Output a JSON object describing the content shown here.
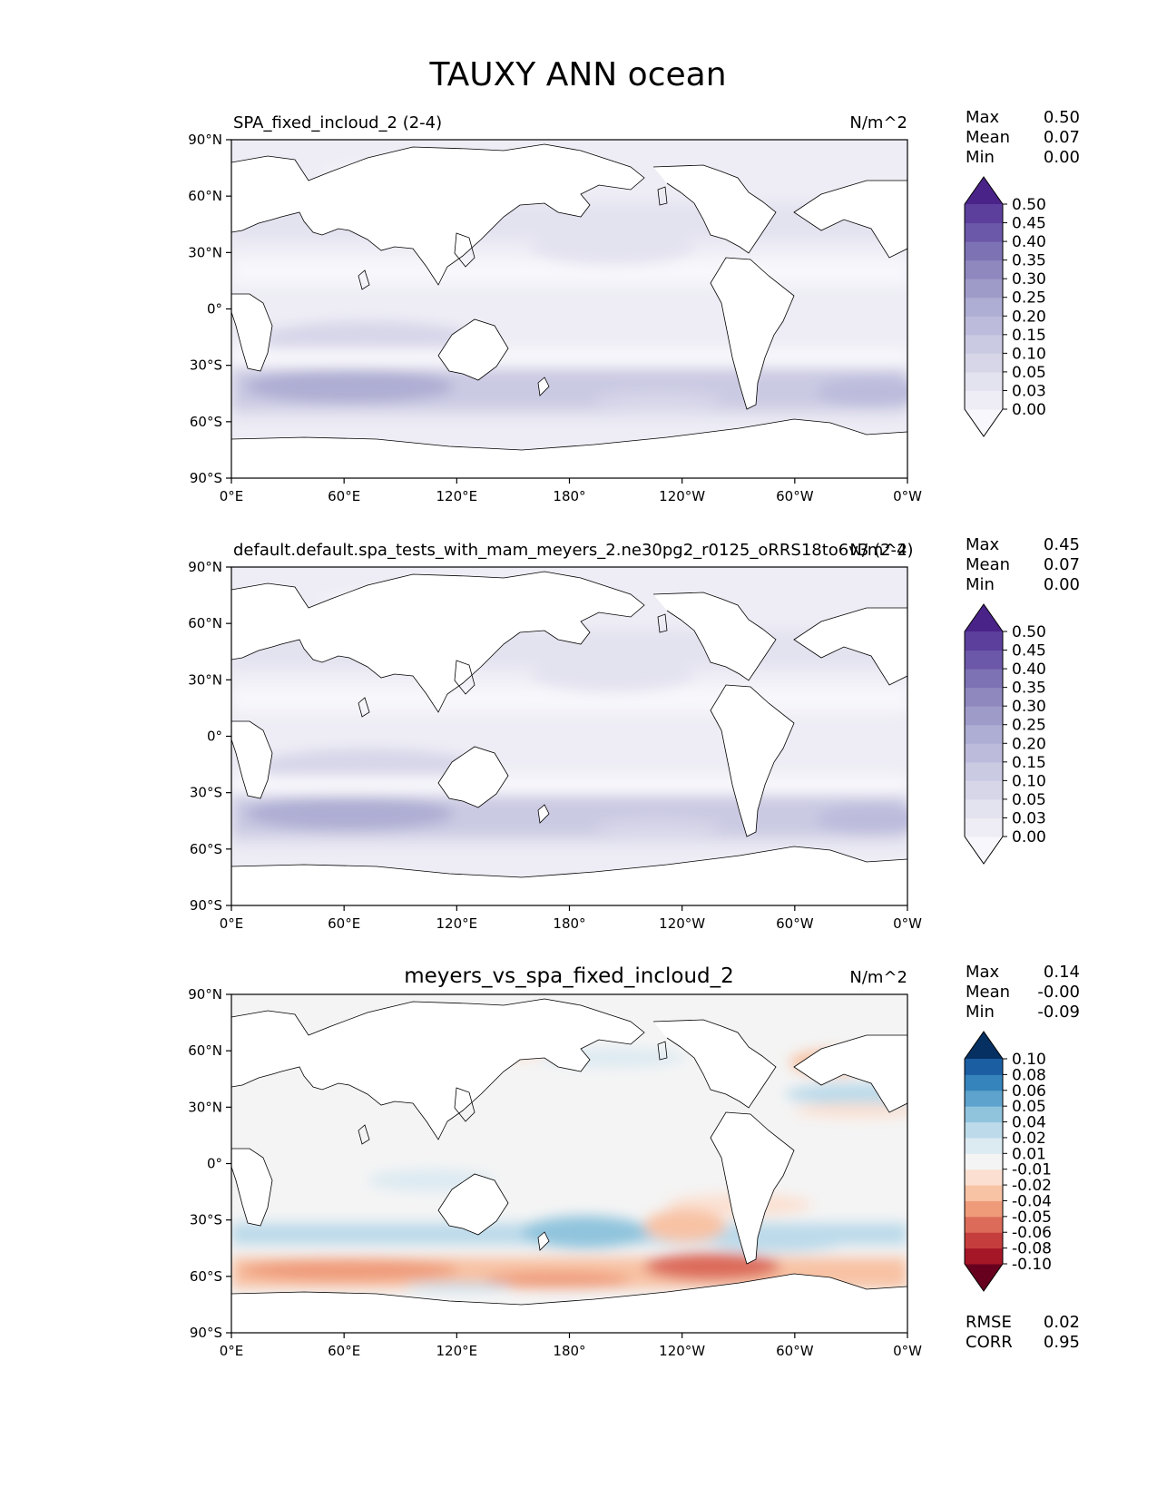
{
  "figure": {
    "title": "TAUXY ANN ocean"
  },
  "axes": {
    "lat_ticks": [
      "90°N",
      "60°N",
      "30°N",
      "0°",
      "30°S",
      "60°S",
      "90°S"
    ],
    "lon_ticks": [
      "0°E",
      "60°E",
      "120°E",
      "180°",
      "120°W",
      "60°W",
      "0°W"
    ]
  },
  "chart_data": [
    {
      "type": "heatmap",
      "panel": "test",
      "title": "SPA_fixed_incloud_2 (2-4)",
      "units": "N/m^2",
      "stats": {
        "max_label": "Max",
        "mean_label": "Mean",
        "min_label": "Min",
        "max": "0.50",
        "mean": "0.07",
        "min": "0.00"
      },
      "colorbar": {
        "levels": [
          "0.50",
          "0.45",
          "0.40",
          "0.35",
          "0.30",
          "0.25",
          "0.20",
          "0.15",
          "0.10",
          "0.05",
          "0.03",
          "0.00"
        ],
        "colors": [
          "#f8f7fb",
          "#eeedf5",
          "#e3e2ef",
          "#d7d6e9",
          "#cbcae3",
          "#bcbbdc",
          "#aeadd3",
          "#9f9bc9",
          "#8e88bf",
          "#7d72b4",
          "#6c58a8",
          "#5c3f9c",
          "#4a2389"
        ]
      },
      "xlim": [
        0,
        360
      ],
      "ylim": [
        -90,
        90
      ]
    },
    {
      "type": "heatmap",
      "panel": "reference",
      "title": "default.default.spa_tests_with_mam_meyers_2.ne30pg2_r0125_oRRS18to6v3 (2-4)",
      "units": "N/m^2",
      "stats": {
        "max_label": "Max",
        "mean_label": "Mean",
        "min_label": "Min",
        "max": "0.45",
        "mean": "0.07",
        "min": "0.00"
      },
      "colorbar": {
        "levels": [
          "0.50",
          "0.45",
          "0.40",
          "0.35",
          "0.30",
          "0.25",
          "0.20",
          "0.15",
          "0.10",
          "0.05",
          "0.03",
          "0.00"
        ],
        "colors": [
          "#f8f7fb",
          "#eeedf5",
          "#e3e2ef",
          "#d7d6e9",
          "#cbcae3",
          "#bcbbdc",
          "#aeadd3",
          "#9f9bc9",
          "#8e88bf",
          "#7d72b4",
          "#6c58a8",
          "#5c3f9c",
          "#4a2389"
        ]
      },
      "xlim": [
        0,
        360
      ],
      "ylim": [
        -90,
        90
      ]
    },
    {
      "type": "heatmap",
      "panel": "difference",
      "title": "meyers_vs_spa_fixed_incloud_2",
      "units": "N/m^2",
      "stats": {
        "max_label": "Max",
        "mean_label": "Mean",
        "min_label": "Min",
        "max": "0.14",
        "mean": "-0.00",
        "min": "-0.09"
      },
      "colorbar": {
        "levels": [
          "0.10",
          "0.08",
          "0.06",
          "0.05",
          "0.04",
          "0.02",
          "0.01",
          "-0.01",
          "-0.02",
          "-0.04",
          "-0.05",
          "-0.06",
          "-0.08",
          "-0.10"
        ],
        "colors": [
          "#67001f",
          "#a51627",
          "#c53e3d",
          "#dc6b5a",
          "#ef9b7a",
          "#f8c2a4",
          "#fbe0d1",
          "#f4f4f4",
          "#dceaf2",
          "#bcdaea",
          "#90c4dd",
          "#5ea3cd",
          "#3584bc",
          "#1b5ea2",
          "#053061"
        ]
      },
      "metrics": {
        "rmse_label": "RMSE",
        "rmse": "0.02",
        "corr_label": "CORR",
        "corr": "0.95"
      },
      "xlim": [
        0,
        360
      ],
      "ylim": [
        -90,
        90
      ]
    }
  ]
}
